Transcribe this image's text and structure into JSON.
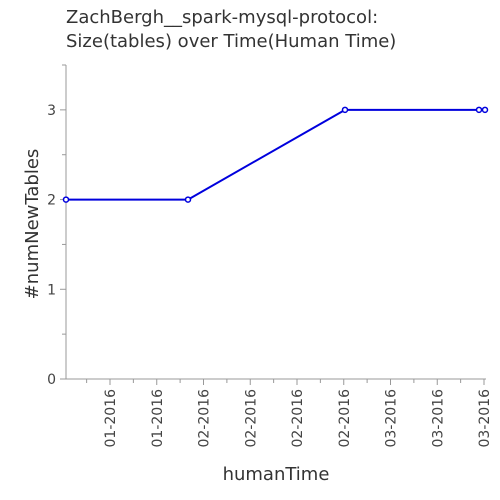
{
  "chart_data": {
    "type": "line",
    "title_line1": "ZachBergh__spark-mysql-protocol:",
    "title_line2": "Size(tables) over Time(Human Time)",
    "xlabel": "humanTime",
    "ylabel": "#numNewTables",
    "x_tick_labels": [
      "01-2016",
      "01-2016",
      "02-2016",
      "02-2016",
      "02-2016",
      "02-2016",
      "03-2016",
      "03-2016",
      "03-2016"
    ],
    "y_ticks": [
      0,
      1,
      2,
      3
    ],
    "ylim": [
      0,
      3.5
    ],
    "series": [
      {
        "values": [
          2,
          2,
          3,
          3,
          3
        ],
        "color": "#0000dd"
      }
    ],
    "grid": false
  }
}
